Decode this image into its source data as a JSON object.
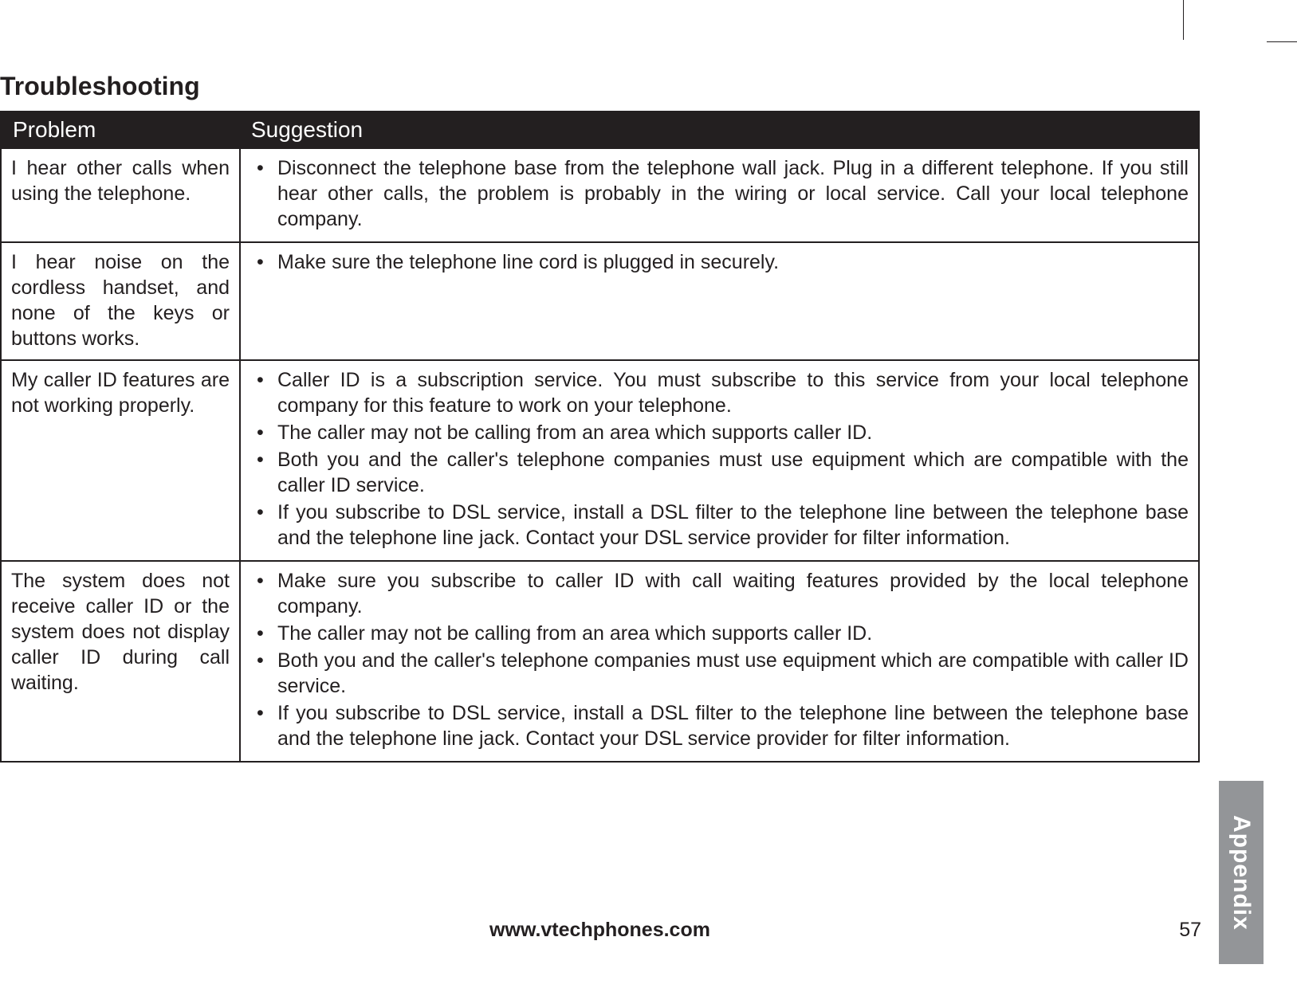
{
  "page": {
    "title": "Troubleshooting",
    "footer_url": "www.vtechphones.com",
    "page_number": "57",
    "side_tab": "Appendix"
  },
  "table": {
    "headers": {
      "problem": "Problem",
      "suggestion": "Suggestion"
    },
    "rows": [
      {
        "problem": "I hear other calls when using the telephone.",
        "problem_stretch": false,
        "suggestions": [
          "Disconnect the telephone base from the telephone wall jack. Plug in a different telephone. If you still hear other calls, the problem is probably in the wiring or local service. Call your local telephone company."
        ]
      },
      {
        "problem": "I hear noise on the cordless handset, and none of the keys or buttons works.",
        "problem_stretch": false,
        "suggestions": [
          "Make sure the telephone line cord is plugged in securely."
        ]
      },
      {
        "problem": "My caller ID features are not working properly.",
        "problem_stretch": false,
        "suggestions": [
          "Caller ID is a subscription service. You must subscribe to this service from your local telephone company for this feature to work on your telephone.",
          "The caller may not be calling from an area which supports caller ID.",
          "Both you and the caller's telephone companies must use equipment which are compatible with the caller ID service.",
          "If you subscribe to DSL service, install a DSL filter to the telephone line between the telephone base and the telephone line jack. Contact your DSL service provider for filter information."
        ]
      },
      {
        "problem": "The system does not receive caller ID or the system does not display caller ID during call waiting.",
        "problem_stretch": false,
        "suggestions": [
          "Make sure you subscribe to caller ID with call waiting features provided by the local telephone company.",
          "The caller may not be calling from an area which supports caller ID.",
          "Both you and the caller's telephone companies must use equipment which are compatible with caller ID service.",
          "If you subscribe to DSL service, install a DSL filter to the telephone line between the telephone base and the telephone line jack. Contact your DSL service provider for filter information."
        ]
      }
    ]
  },
  "colors": {
    "header_bg": "#231f20",
    "header_fg": "#ffffff",
    "body_fg": "#231f20",
    "side_tab_bg": "#939598",
    "side_tab_fg": "#ffffff",
    "page_bg": "#ffffff"
  }
}
